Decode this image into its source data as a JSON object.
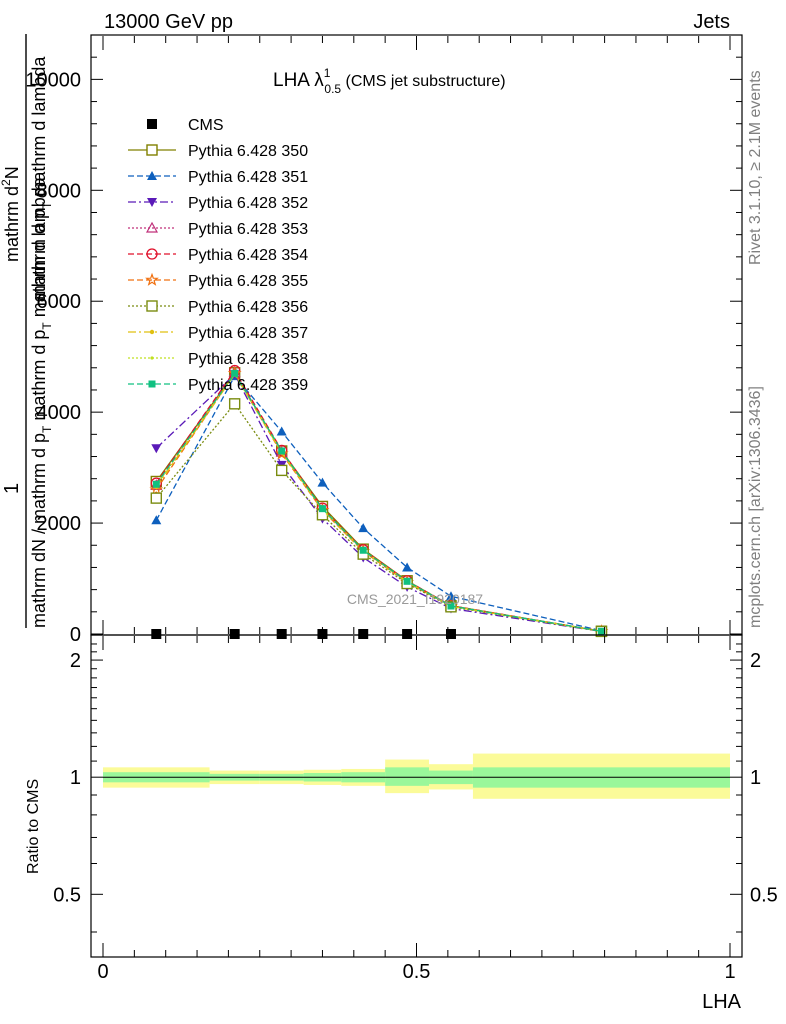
{
  "header": {
    "left": "13000 GeV pp",
    "right": "Jets"
  },
  "side": {
    "rivet": "Rivet 3.1.10, ≥ 2.1M events",
    "mcplots": "mcplots.cern.ch [arXiv:1306.3436]"
  },
  "watermark": "CMS_2021_I1920187",
  "colors": {
    "band_inner": "#9af79a",
    "band_outer": "#fbfb99"
  },
  "chart_data": [
    {
      "type": "line",
      "title_main": "LHA λ",
      "title_sup": "1",
      "title_sub": "0.5",
      "title_tail": " (CMS jet substructure)",
      "ylabel_frac_num": "1",
      "ylabel_top": "mathrm dN / mathrm d p_T mathrm d lambda",
      "ylabel_bot": "mathrm d^2N / mathrm d p_T mathrm d lambda",
      "ylabel_top_display": "mathrm d",
      "ylabel_top_sup": "2",
      "ylabel_top_rest": "N",
      "ylabel_top_line2": "mathrm d p",
      "ylabel_top_line2_sub": "T",
      "ylabel_top_line2_rest": " mathrm d lambda",
      "ylabel_bot_line1": "mathrm dN / mathrm d p",
      "ylabel_bot_line1_sub": "T",
      "ylabel_bot_line1_rest": " mathrm d p",
      "ylabel_bot_line1_sub2": "T",
      "ylabel_bot_line1_rest2": " mathrm d lambda",
      "xlim": [
        0,
        1
      ],
      "ylim": [
        0,
        10800
      ],
      "yticks": [
        0,
        2000,
        4000,
        6000,
        8000,
        10000
      ],
      "ytick_labels": [
        "0",
        "2000",
        "4000",
        "6000",
        "8000",
        "10000"
      ],
      "x": [
        0.085,
        0.21,
        0.285,
        0.35,
        0.415,
        0.485,
        0.555,
        0.795
      ],
      "cms": {
        "name": "CMS",
        "color": "#000000",
        "x": [
          0.085,
          0.21,
          0.285,
          0.35,
          0.415,
          0.485,
          0.555
        ],
        "y": [
          0,
          0,
          0,
          0,
          0,
          0,
          0
        ]
      },
      "series": [
        {
          "name": "Pythia 6.428 350",
          "color": "#808000",
          "dash": "",
          "marker": "square-open",
          "y": [
            2750,
            4710,
            3300,
            2300,
            1530,
            960,
            510,
            50
          ]
        },
        {
          "name": "Pythia 6.428 351",
          "color": "#0d5fbd",
          "dash": "6,3",
          "marker": "triangle-up",
          "y": [
            2050,
            4650,
            3650,
            2730,
            1910,
            1200,
            680,
            60
          ]
        },
        {
          "name": "Pythia 6.428 352",
          "color": "#5a1ab8",
          "dash": "8,3,2,3",
          "marker": "triangle-down",
          "y": [
            3350,
            4680,
            3050,
            2080,
            1380,
            850,
            460,
            45
          ]
        },
        {
          "name": "Pythia 6.428 353",
          "color": "#c0307a",
          "dash": "2,2",
          "marker": "triangle-open",
          "y": [
            2680,
            4720,
            3280,
            2250,
            1500,
            940,
            500,
            48
          ]
        },
        {
          "name": "Pythia 6.428 354",
          "color": "#e0102a",
          "dash": "6,3",
          "marker": "circle-open",
          "y": [
            2720,
            4750,
            3310,
            2270,
            1520,
            960,
            510,
            50
          ]
        },
        {
          "name": "Pythia 6.428 355",
          "color": "#f07010",
          "dash": "6,3",
          "marker": "star-open",
          "y": [
            2600,
            4700,
            3250,
            2230,
            1490,
            930,
            500,
            48
          ]
        },
        {
          "name": "Pythia 6.428 356",
          "color": "#7a8c10",
          "dash": "2,2",
          "marker": "square-open",
          "y": [
            2450,
            4150,
            2950,
            2150,
            1440,
            910,
            490,
            47
          ]
        },
        {
          "name": "Pythia 6.428 357",
          "color": "#e0c010",
          "dash": "8,3,2,3",
          "marker": "dot",
          "y": [
            2650,
            4680,
            3270,
            2240,
            1500,
            940,
            500,
            48
          ]
        },
        {
          "name": "Pythia 6.428 358",
          "color": "#c0e020",
          "dash": "2,2",
          "marker": "dot-small",
          "y": [
            2680,
            4700,
            3280,
            2250,
            1510,
            945,
            505,
            49
          ]
        },
        {
          "name": "Pythia 6.428 359",
          "color": "#10c080",
          "dash": "6,3",
          "marker": "square-filled",
          "y": [
            2700,
            4700,
            3300,
            2260,
            1510,
            950,
            505,
            49
          ]
        }
      ]
    },
    {
      "type": "line",
      "xlabel": "LHA",
      "ylabel": "Ratio to CMS",
      "xlim": [
        0,
        1
      ],
      "ylim": [
        0.345,
        2.32
      ],
      "log_scale_y": true,
      "yticks": [
        0.5,
        1,
        2
      ],
      "ytick_labels": [
        "0.5",
        "1",
        "2"
      ],
      "xticks": [
        0,
        0.5,
        1
      ],
      "xtick_labels": [
        "0",
        "0.5",
        "1"
      ],
      "bins": [
        {
          "lo": 0.0,
          "hi": 0.17,
          "inner": [
            0.97,
            1.03
          ],
          "outer": [
            0.94,
            1.06
          ]
        },
        {
          "lo": 0.17,
          "hi": 0.25,
          "inner": [
            0.98,
            1.02
          ],
          "outer": [
            0.96,
            1.04
          ]
        },
        {
          "lo": 0.25,
          "hi": 0.32,
          "inner": [
            0.98,
            1.02
          ],
          "outer": [
            0.96,
            1.04
          ]
        },
        {
          "lo": 0.32,
          "hi": 0.38,
          "inner": [
            0.975,
            1.025
          ],
          "outer": [
            0.955,
            1.045
          ]
        },
        {
          "lo": 0.38,
          "hi": 0.45,
          "inner": [
            0.97,
            1.03
          ],
          "outer": [
            0.95,
            1.05
          ]
        },
        {
          "lo": 0.45,
          "hi": 0.52,
          "inner": [
            0.95,
            1.06
          ],
          "outer": [
            0.91,
            1.11
          ]
        },
        {
          "lo": 0.52,
          "hi": 0.59,
          "inner": [
            0.96,
            1.04
          ],
          "outer": [
            0.93,
            1.08
          ]
        },
        {
          "lo": 0.59,
          "hi": 1.0,
          "inner": [
            0.94,
            1.06
          ],
          "outer": [
            0.88,
            1.15
          ]
        }
      ]
    }
  ]
}
